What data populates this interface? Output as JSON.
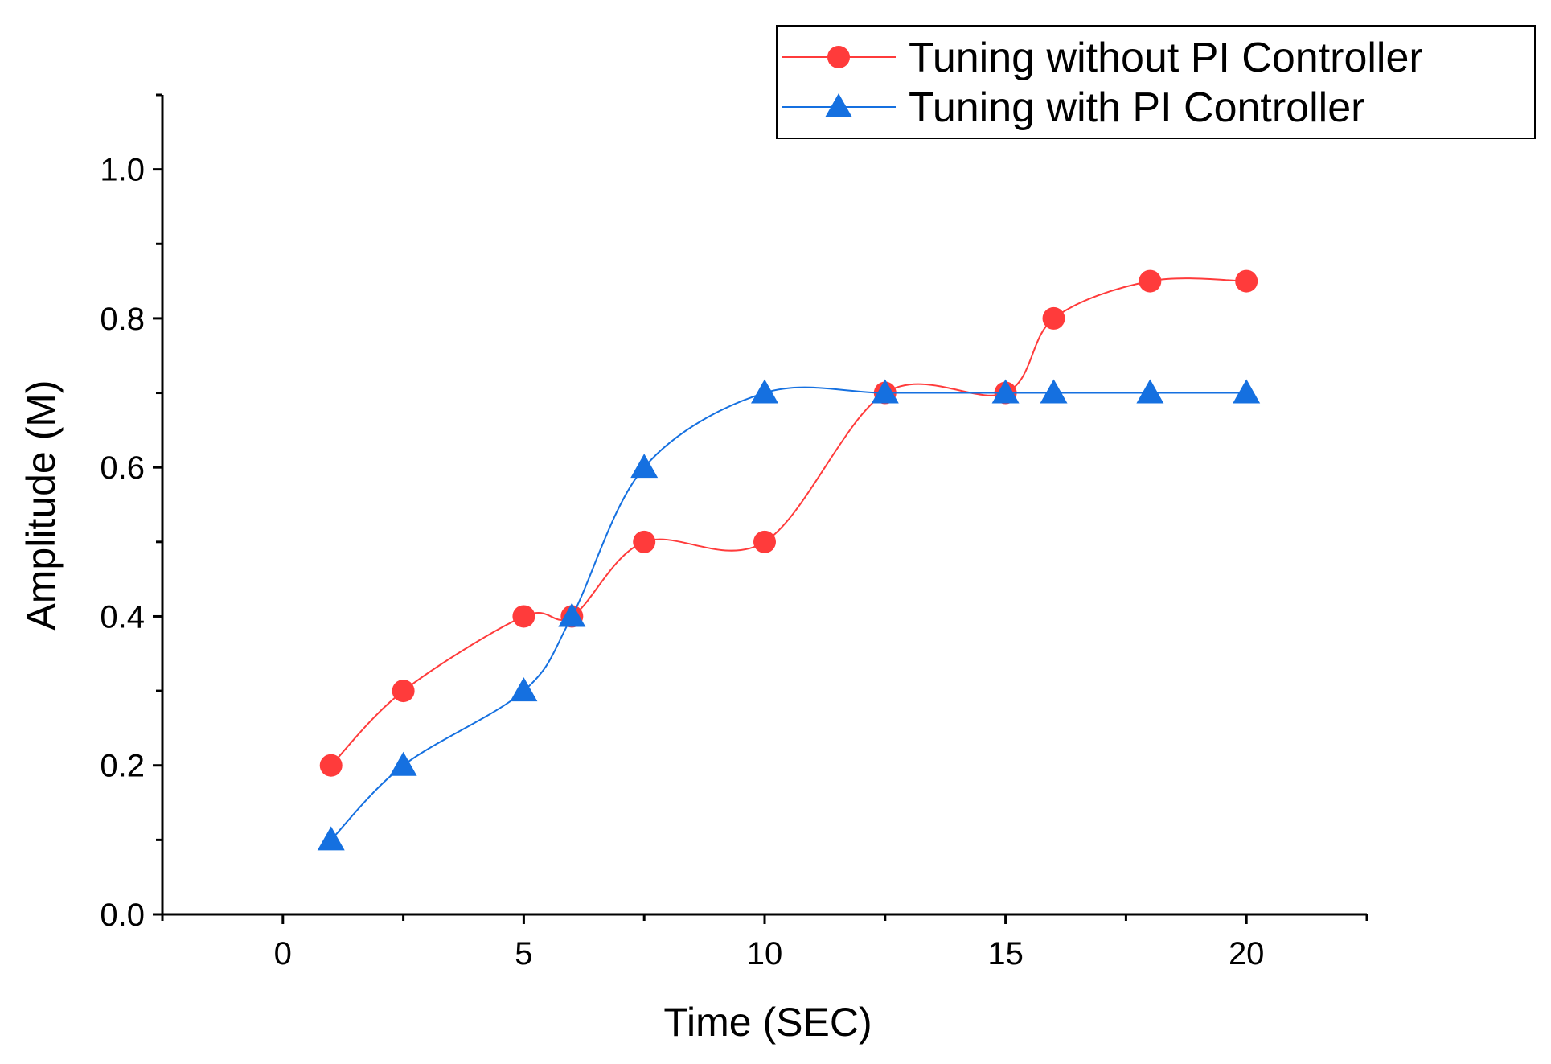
{
  "chart_data": {
    "type": "line",
    "title": "",
    "xlabel": "Time (SEC)",
    "ylabel": "Amplitude (M)",
    "xlim": [
      -2.5,
      22.5
    ],
    "ylim": [
      0.0,
      1.1
    ],
    "x_ticks": [
      0,
      5,
      10,
      15,
      20
    ],
    "x_tick_labels": [
      "0",
      "5",
      "10",
      "15",
      "20"
    ],
    "y_ticks": [
      0.0,
      0.2,
      0.4,
      0.6,
      0.8,
      1.0
    ],
    "y_tick_labels": [
      "0.0",
      "0.2",
      "0.4",
      "0.6",
      "0.8",
      "1.0"
    ],
    "grid": false,
    "legend_position": "top-right",
    "series": [
      {
        "name": "Tuning without PI Controller",
        "color": "#ff3b3b",
        "marker": "circle",
        "smooth": true,
        "x": [
          1,
          2.5,
          5,
          6,
          7.5,
          10,
          12.5,
          15,
          16,
          18,
          20
        ],
        "y": [
          0.2,
          0.3,
          0.4,
          0.4,
          0.5,
          0.5,
          0.7,
          0.7,
          0.8,
          0.85,
          0.85
        ]
      },
      {
        "name": "Tuning with PI Controller",
        "color": "#1570e0",
        "marker": "triangle",
        "smooth": true,
        "x": [
          1,
          2.5,
          5,
          6,
          7.5,
          10,
          12.5,
          15,
          16,
          18,
          20
        ],
        "y": [
          0.1,
          0.2,
          0.3,
          0.4,
          0.6,
          0.7,
          0.7,
          0.7,
          0.7,
          0.7,
          0.7
        ]
      }
    ]
  }
}
